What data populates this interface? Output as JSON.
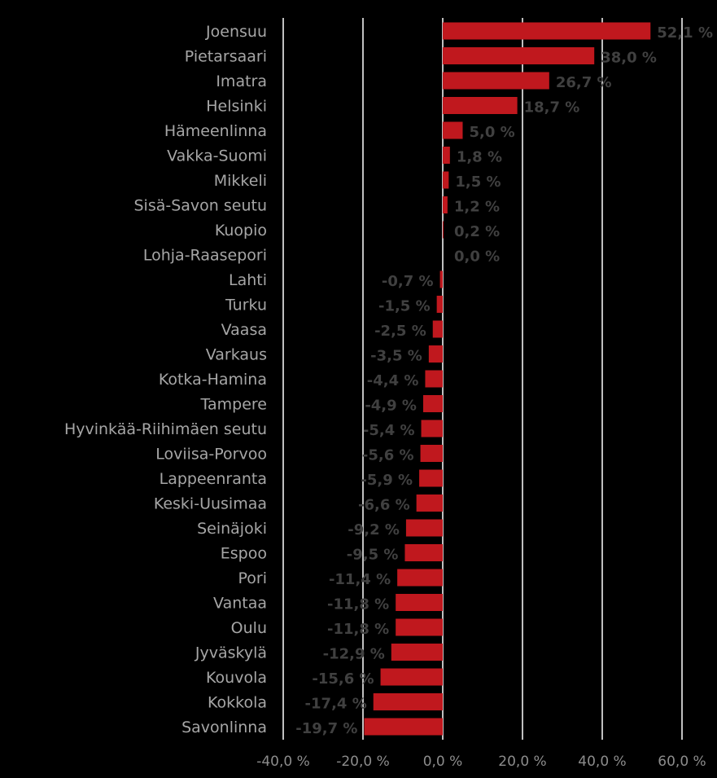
{
  "chart_data": {
    "type": "bar",
    "orientation": "horizontal",
    "title": "",
    "xlabel": "",
    "ylabel": "",
    "xlim": [
      -40,
      60
    ],
    "grid": true,
    "legend": "none",
    "bar_color": "#c0181e",
    "gridline_color": "#ffffff",
    "background_color": "#000000",
    "category_label_color": "#a6a6a6",
    "value_label_color": "#404040",
    "tick_label_color": "#8c8c8c",
    "x_ticks": [
      -40,
      -20,
      0,
      20,
      40,
      60
    ],
    "x_tick_labels": [
      "-40,0 %",
      "-20,0 %",
      "0,0 %",
      "20,0 %",
      "40,0 %",
      "60,0 %"
    ],
    "categories": [
      "Joensuu",
      "Pietarsaari",
      "Imatra",
      "Helsinki",
      "Hämeenlinna",
      "Vakka-Suomi",
      "Mikkeli",
      "Sisä-Savon seutu",
      "Kuopio",
      "Lohja-Raasepori",
      "Lahti",
      "Turku",
      "Vaasa",
      "Varkaus",
      "Kotka-Hamina",
      "Tampere",
      "Hyvinkää-Riihimäen seutu",
      "Loviisa-Porvoo",
      "Lappeenranta",
      "Keski-Uusimaa",
      "Seinäjoki",
      "Espoo",
      "Pori",
      "Vantaa",
      "Oulu",
      "Jyväskylä",
      "Kouvola",
      "Kokkola",
      "Savonlinna"
    ],
    "values": [
      52.1,
      38.0,
      26.7,
      18.7,
      5.0,
      1.8,
      1.5,
      1.2,
      0.2,
      0.0,
      -0.7,
      -1.5,
      -2.5,
      -3.5,
      -4.4,
      -4.9,
      -5.4,
      -5.6,
      -5.9,
      -6.6,
      -9.2,
      -9.5,
      -11.4,
      -11.8,
      -11.8,
      -12.9,
      -15.6,
      -17.4,
      -19.7
    ],
    "value_labels": [
      "52,1 %",
      "38,0 %",
      "26,7 %",
      "18,7 %",
      "5,0 %",
      "1,8 %",
      "1,5 %",
      "1,2 %",
      "0,2 %",
      "0,0 %",
      "-0,7 %",
      "-1,5 %",
      "-2,5 %",
      "-3,5 %",
      "-4,4 %",
      "-4,9 %",
      "-5,4 %",
      "-5,6 %",
      "-5,9 %",
      "-6,6 %",
      "-9,2 %",
      "-9,5 %",
      "-11,4 %",
      "-11,8 %",
      "-11,8 %",
      "-12,9 %",
      "-15,6 %",
      "-17,4 %",
      "-19,7 %"
    ]
  }
}
